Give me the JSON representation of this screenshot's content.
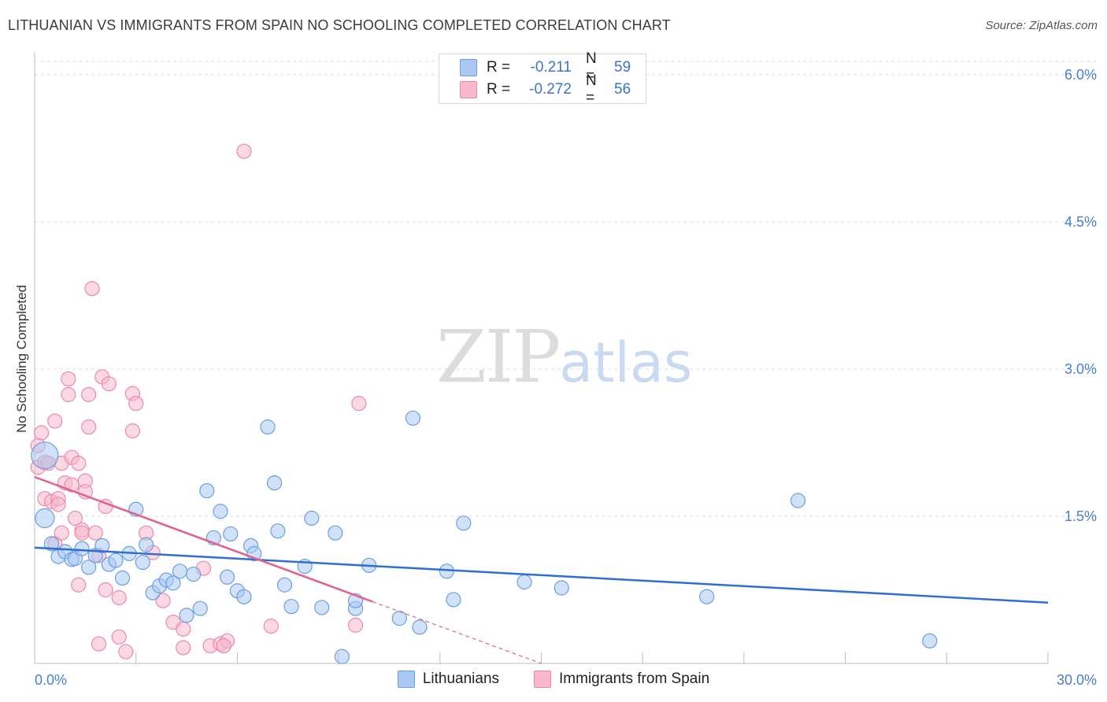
{
  "header": {
    "title": "LITHUANIAN VS IMMIGRANTS FROM SPAIN NO SCHOOLING COMPLETED CORRELATION CHART",
    "source": "Source: ZipAtlas.com"
  },
  "watermark": {
    "zip": "ZIP",
    "atlas": "atlas"
  },
  "legend": {
    "rows": [
      {
        "r_label": "R =",
        "r_value": "-0.211",
        "n_label": "N =",
        "n_value": "59",
        "color": "#a9c8f2"
      },
      {
        "r_label": "R =",
        "r_value": "-0.272",
        "n_label": "N =",
        "n_value": "56",
        "color": "#f7b8cc"
      }
    ]
  },
  "bottom_legend": {
    "items": [
      {
        "label": "Lithuanians",
        "color": "#a9c8f2"
      },
      {
        "label": "Immigrants from Spain",
        "color": "#f7b8cc"
      }
    ]
  },
  "chart_data": {
    "type": "scatter",
    "title": "LITHUANIAN VS IMMIGRANTS FROM SPAIN NO SCHOOLING COMPLETED CORRELATION CHART",
    "xlabel": "",
    "ylabel": "No Schooling Completed",
    "xlim": [
      0,
      30
    ],
    "ylim": [
      0,
      6.2
    ],
    "x_tick_labels": [
      "0.0%",
      "30.0%"
    ],
    "y_ticks": [
      1.5,
      3.0,
      4.5,
      6.0
    ],
    "y_tick_labels": [
      "1.5%",
      "3.0%",
      "4.5%",
      "6.0%"
    ],
    "grid": true,
    "series": [
      {
        "name": "Lithuanians",
        "color": "#a9c8f2",
        "stroke": "#6b9ee3",
        "trend": {
          "x": [
            0,
            30
          ],
          "y": [
            1.18,
            0.62
          ],
          "color": "#2f6fce"
        },
        "points": [
          [
            0.3,
            2.12
          ],
          [
            0.3,
            1.48
          ],
          [
            0.5,
            1.22
          ],
          [
            0.7,
            1.09
          ],
          [
            0.9,
            1.14
          ],
          [
            1.1,
            1.06
          ],
          [
            1.2,
            1.07
          ],
          [
            1.4,
            1.17
          ],
          [
            1.6,
            0.98
          ],
          [
            1.8,
            1.1
          ],
          [
            2.0,
            1.2
          ],
          [
            2.2,
            1.01
          ],
          [
            2.4,
            1.05
          ],
          [
            2.6,
            0.87
          ],
          [
            2.8,
            1.12
          ],
          [
            3.0,
            1.57
          ],
          [
            3.2,
            1.03
          ],
          [
            3.3,
            1.21
          ],
          [
            3.5,
            0.72
          ],
          [
            3.7,
            0.79
          ],
          [
            3.9,
            0.85
          ],
          [
            4.1,
            0.82
          ],
          [
            4.3,
            0.94
          ],
          [
            4.5,
            0.49
          ],
          [
            4.7,
            0.91
          ],
          [
            4.9,
            0.56
          ],
          [
            5.1,
            1.76
          ],
          [
            5.3,
            1.28
          ],
          [
            5.5,
            1.55
          ],
          [
            5.7,
            0.88
          ],
          [
            5.8,
            1.32
          ],
          [
            6.0,
            0.74
          ],
          [
            6.2,
            0.68
          ],
          [
            6.4,
            1.2
          ],
          [
            6.5,
            1.12
          ],
          [
            6.9,
            2.41
          ],
          [
            7.1,
            1.84
          ],
          [
            7.2,
            1.35
          ],
          [
            7.4,
            0.8
          ],
          [
            7.6,
            0.58
          ],
          [
            8.0,
            0.99
          ],
          [
            8.2,
            1.48
          ],
          [
            8.5,
            0.57
          ],
          [
            8.9,
            1.33
          ],
          [
            9.1,
            0.07
          ],
          [
            9.5,
            0.56
          ],
          [
            9.5,
            0.64
          ],
          [
            9.9,
            1.0
          ],
          [
            10.8,
            0.46
          ],
          [
            11.2,
            2.5
          ],
          [
            11.4,
            0.37
          ],
          [
            12.2,
            0.94
          ],
          [
            12.4,
            0.65
          ],
          [
            12.7,
            1.43
          ],
          [
            14.5,
            0.83
          ],
          [
            15.6,
            0.77
          ],
          [
            19.9,
            0.68
          ],
          [
            22.6,
            1.66
          ],
          [
            26.5,
            0.23
          ]
        ]
      },
      {
        "name": "Immigrants from Spain",
        "color": "#f7b8cc",
        "stroke": "#eb8aa8",
        "trend": {
          "x": [
            0,
            10
          ],
          "y": [
            1.9,
            0.63
          ],
          "dashed_to": [
            15,
            0.0
          ],
          "color": "#e0628c"
        },
        "points": [
          [
            0.1,
            2.22
          ],
          [
            0.1,
            2.0
          ],
          [
            0.2,
            2.35
          ],
          [
            0.3,
            2.05
          ],
          [
            0.3,
            1.68
          ],
          [
            0.4,
            2.04
          ],
          [
            0.5,
            1.65
          ],
          [
            0.6,
            2.47
          ],
          [
            0.6,
            1.22
          ],
          [
            0.7,
            1.68
          ],
          [
            0.7,
            1.62
          ],
          [
            0.8,
            2.04
          ],
          [
            0.8,
            1.33
          ],
          [
            0.9,
            1.84
          ],
          [
            1.0,
            2.9
          ],
          [
            1.0,
            2.74
          ],
          [
            1.1,
            2.1
          ],
          [
            1.1,
            1.82
          ],
          [
            1.2,
            1.48
          ],
          [
            1.3,
            2.04
          ],
          [
            1.3,
            0.8
          ],
          [
            1.4,
            1.36
          ],
          [
            1.4,
            1.33
          ],
          [
            1.5,
            1.86
          ],
          [
            1.5,
            1.75
          ],
          [
            1.6,
            2.41
          ],
          [
            1.6,
            2.74
          ],
          [
            1.7,
            3.82
          ],
          [
            1.8,
            1.33
          ],
          [
            1.9,
            1.1
          ],
          [
            1.9,
            0.2
          ],
          [
            2.0,
            2.92
          ],
          [
            2.1,
            1.6
          ],
          [
            2.1,
            0.75
          ],
          [
            2.2,
            2.85
          ],
          [
            2.5,
            0.67
          ],
          [
            2.5,
            0.27
          ],
          [
            2.7,
            0.12
          ],
          [
            2.9,
            2.75
          ],
          [
            2.9,
            2.37
          ],
          [
            3.0,
            2.65
          ],
          [
            3.3,
            1.33
          ],
          [
            3.5,
            1.13
          ],
          [
            3.8,
            0.64
          ],
          [
            4.1,
            0.42
          ],
          [
            4.4,
            0.35
          ],
          [
            4.4,
            0.16
          ],
          [
            5.0,
            0.97
          ],
          [
            5.2,
            0.18
          ],
          [
            5.5,
            0.2
          ],
          [
            5.7,
            0.23
          ],
          [
            6.2,
            5.22
          ],
          [
            7.0,
            0.38
          ],
          [
            9.5,
            0.39
          ],
          [
            9.6,
            2.65
          ],
          [
            5.6,
            0.18
          ]
        ]
      }
    ]
  }
}
